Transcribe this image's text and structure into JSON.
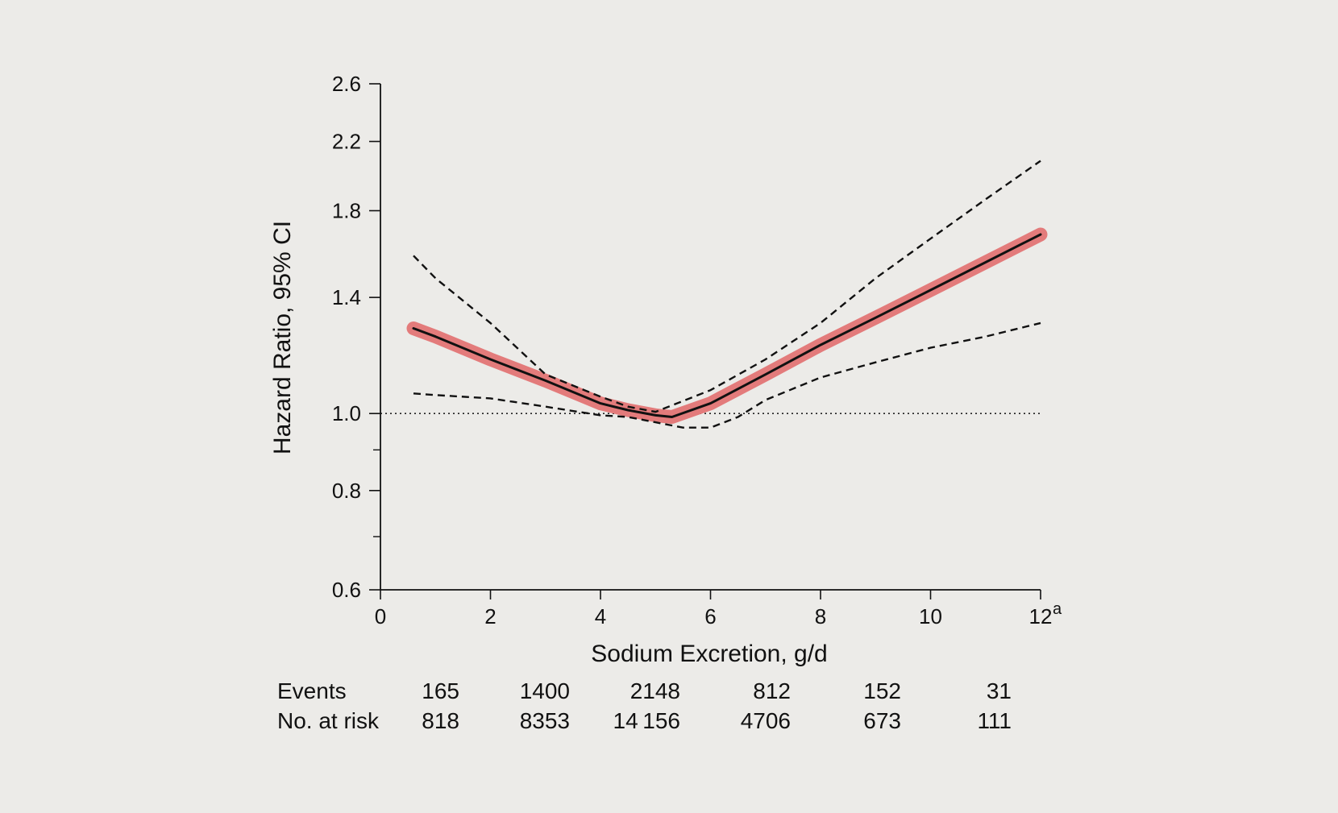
{
  "chart_data": {
    "type": "line",
    "xlabel": "Sodium Excretion, g/d",
    "ylabel": "Hazard Ratio, 95% CI",
    "y_scale": "log",
    "xlim": [
      0,
      12
    ],
    "ylim": [
      0.6,
      2.6
    ],
    "x_ticks": [
      "0",
      "2",
      "4",
      "6",
      "8",
      "10",
      "12"
    ],
    "x_tick_superscript": {
      "12": "a"
    },
    "y_ticks": [
      "0.6",
      "0.8",
      "1.0",
      "1.4",
      "1.8",
      "2.2",
      "2.6"
    ],
    "y_minor_ticks": [
      0.7,
      0.9
    ],
    "reference_line": {
      "y": 1.0,
      "style": "dotted"
    },
    "series": [
      {
        "role": "estimate",
        "style": "solid with red highlight",
        "x": [
          0.6,
          1,
          2,
          3,
          4,
          4.5,
          5,
          5.3,
          6,
          7,
          8,
          9,
          10,
          11,
          12
        ],
        "y": [
          1.28,
          1.25,
          1.17,
          1.1,
          1.03,
          1.01,
          0.995,
          0.99,
          1.03,
          1.12,
          1.22,
          1.32,
          1.43,
          1.55,
          1.68
        ]
      },
      {
        "role": "upper_ci",
        "style": "dashed",
        "x": [
          0.6,
          1,
          2,
          3,
          4,
          4.5,
          5,
          6,
          7,
          8,
          9,
          10,
          11,
          12
        ],
        "y": [
          1.58,
          1.48,
          1.3,
          1.12,
          1.05,
          1.02,
          1.005,
          1.07,
          1.17,
          1.3,
          1.48,
          1.66,
          1.86,
          2.08
        ]
      },
      {
        "role": "lower_ci",
        "style": "dashed",
        "x": [
          0.6,
          1,
          2,
          3,
          4,
          4.5,
          5,
          5.5,
          6,
          6.5,
          7,
          8,
          9,
          10,
          11,
          12
        ],
        "y": [
          1.06,
          1.055,
          1.045,
          1.02,
          0.995,
          0.99,
          0.975,
          0.96,
          0.96,
          0.99,
          1.04,
          1.11,
          1.16,
          1.21,
          1.25,
          1.3
        ]
      }
    ],
    "risk_table": {
      "rows": [
        {
          "label": "Events",
          "values": [
            "165",
            "1400",
            "2148",
            "812",
            "152",
            "31"
          ]
        },
        {
          "label": "No. at risk",
          "values": [
            "818",
            "8353",
            "14 156",
            "4706",
            "673",
            "111"
          ]
        }
      ]
    },
    "colors": {
      "estimate_highlight": "#e37b7b",
      "line": "#111111",
      "background": "#ecebe8"
    }
  }
}
